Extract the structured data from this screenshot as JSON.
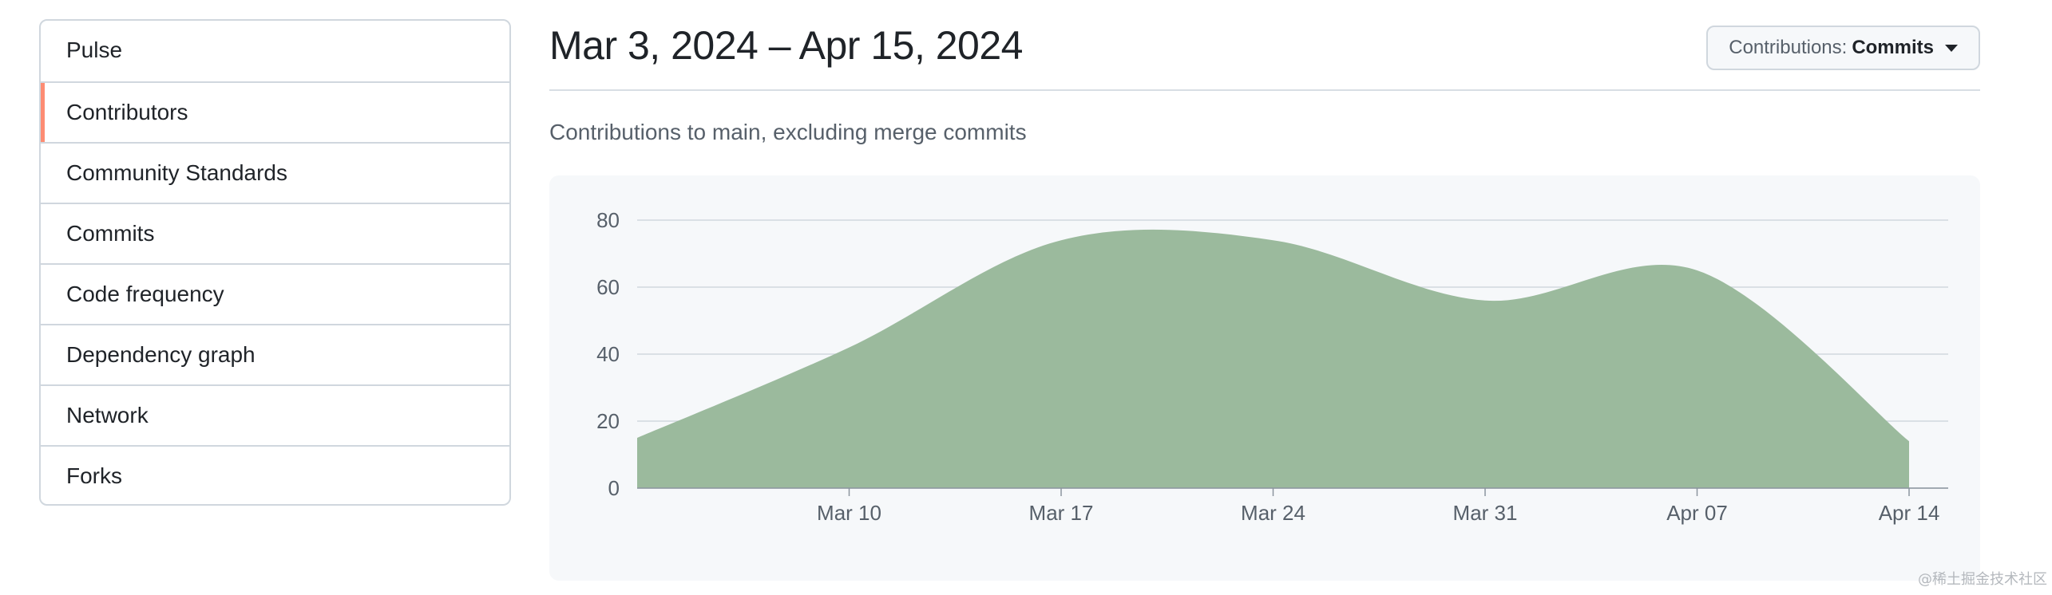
{
  "sidebar": {
    "items": [
      {
        "label": "Pulse",
        "selected": false
      },
      {
        "label": "Contributors",
        "selected": true
      },
      {
        "label": "Community Standards",
        "selected": false
      },
      {
        "label": "Commits",
        "selected": false
      },
      {
        "label": "Code frequency",
        "selected": false
      },
      {
        "label": "Dependency graph",
        "selected": false
      },
      {
        "label": "Network",
        "selected": false
      },
      {
        "label": "Forks",
        "selected": false
      }
    ]
  },
  "header": {
    "title": "Mar 3, 2024 – Apr 15, 2024",
    "contributions_prefix": "Contributions:",
    "contributions_value": "Commits",
    "subtitle": "Contributions to main, excluding merge commits"
  },
  "chart_data": {
    "type": "area",
    "title": "",
    "xlabel": "",
    "ylabel": "",
    "ylim": [
      0,
      80
    ],
    "yticks": [
      0,
      20,
      40,
      60,
      80
    ],
    "x_ticks": [
      "Mar 10",
      "Mar 17",
      "Mar 24",
      "Mar 31",
      "Apr 07",
      "Apr 14"
    ],
    "x": [
      "Mar 3",
      "Mar 10",
      "Mar 17",
      "Mar 24",
      "Mar 31",
      "Apr 07",
      "Apr 14"
    ],
    "values": [
      15,
      42,
      74,
      74,
      56,
      65,
      14
    ],
    "grid": true,
    "fill_color": "#9bba9d"
  },
  "watermark": "@稀土掘金技术社区"
}
